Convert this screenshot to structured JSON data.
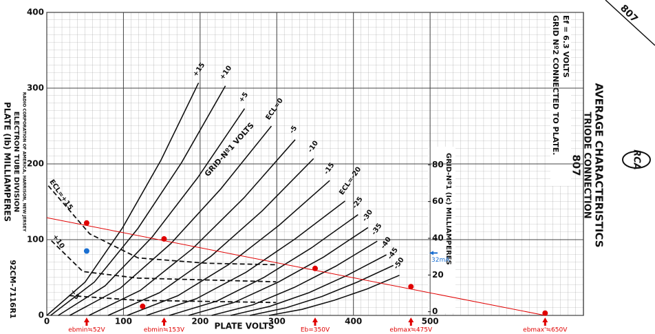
{
  "chart_data": {
    "type": "line",
    "x_label": "PLATE VOLTS",
    "y_label": "PLATE (Ib) MILLIAMPERES",
    "y2_label": "GRID-Nº1 (Ic) MILLIAMPERES",
    "title": "AVERAGE CHARACTERISTICS",
    "subtitle": "TRIODE CONNECTION",
    "tube": "807",
    "corner_label": "807",
    "logo": "RCA",
    "conditions": [
      "Ef = 6.3 VOLTS",
      "GRID Nº2 CONNECTED TO PLATE."
    ],
    "maker": [
      "ELECTRON TUBE DIVISION",
      "RADIO CORPORATION OF AMERICA, HARRISON, NEW JERSEY"
    ],
    "drawing_number": "92CM-7116R1",
    "curves_label": "GRID-Nº1 VOLTS",
    "xlim": [
      0,
      700
    ],
    "xticks": [
      0,
      100,
      200,
      300,
      400,
      500
    ],
    "ylim": [
      0,
      400
    ],
    "yticks": [
      0,
      100,
      200,
      300,
      400
    ],
    "y2lim": [
      -2,
      163
    ],
    "y2ticks": [
      0,
      20,
      40,
      60,
      80
    ],
    "grid": true,
    "series": [
      {
        "name": "+15",
        "color": "#111",
        "x": [
          0,
          50,
          99,
          149,
          198
        ],
        "values": [
          0,
          44,
          116,
          205,
          307
        ]
      },
      {
        "name": "+10",
        "color": "#111",
        "x": [
          5,
          62,
          119,
          176,
          233
        ],
        "values": [
          0,
          44,
          115,
          202,
          303
        ]
      },
      {
        "name": "+5",
        "color": "#111",
        "x": [
          15,
          76,
          137,
          197,
          258
        ],
        "values": [
          0,
          39,
          103,
          182,
          273
        ]
      },
      {
        "name": "ECL=0",
        "color": "#111",
        "x": [
          30,
          96,
          162,
          227,
          293
        ],
        "values": [
          0,
          36,
          95,
          167,
          250
        ]
      },
      {
        "name": "-5",
        "color": "#111",
        "x": [
          55,
          122,
          190,
          257,
          324
        ],
        "values": [
          0,
          33,
          88,
          155,
          232
        ]
      },
      {
        "name": "-10",
        "color": "#111",
        "x": [
          80,
          147,
          214,
          281,
          348
        ],
        "values": [
          0,
          30,
          78,
          138,
          207
        ]
      },
      {
        "name": "-15",
        "color": "#111",
        "x": [
          105,
          171,
          237,
          303,
          369
        ],
        "values": [
          0,
          26,
          67,
          119,
          178
        ]
      },
      {
        "name": "ECL=-20",
        "color": "#111",
        "x": [
          130,
          195,
          260,
          324,
          389
        ],
        "values": [
          0,
          22,
          57,
          101,
          151
        ]
      },
      {
        "name": "-25",
        "color": "#111",
        "x": [
          160,
          222,
          283,
          345,
          406
        ],
        "values": [
          0,
          19,
          50,
          89,
          133
        ]
      },
      {
        "name": "-30",
        "color": "#111",
        "x": [
          185,
          244,
          302,
          361,
          419
        ],
        "values": [
          0,
          17,
          44,
          77,
          116
        ]
      },
      {
        "name": "-35",
        "color": "#111",
        "x": [
          215,
          269,
          323,
          377,
          431
        ],
        "values": [
          0,
          14,
          37,
          65,
          98
        ]
      },
      {
        "name": "-40",
        "color": "#111",
        "x": [
          240,
          291,
          342,
          392,
          443
        ],
        "values": [
          0,
          12,
          30,
          53,
          80
        ]
      },
      {
        "name": "-45",
        "color": "#111",
        "x": [
          265,
          312,
          359,
          405,
          452
        ],
        "values": [
          0,
          10,
          25,
          44,
          66
        ]
      },
      {
        "name": "-50",
        "color": "#111",
        "x": [
          290,
          333,
          375,
          418,
          460
        ],
        "values": [
          0,
          8,
          20,
          35,
          53
        ]
      },
      {
        "name": "ECL=+15",
        "color": "#111",
        "dashed": true,
        "axis": "y2",
        "x": [
          2,
          56,
          119,
          209,
          299
        ],
        "values": [
          68.6,
          42.4,
          29.3,
          26.4,
          25.6
        ]
      },
      {
        "name": "+10",
        "color": "#111",
        "dashed": true,
        "axis": "y2",
        "x": [
          6,
          47,
          119,
          299
        ],
        "values": [
          38.7,
          21.9,
          18.3,
          16.3
        ]
      },
      {
        "name": "+5",
        "color": "#111",
        "dashed": true,
        "axis": "y2",
        "x": [
          29,
          119,
          299
        ],
        "values": [
          8.8,
          6.2,
          5.0
        ]
      }
    ],
    "load_line": {
      "color": "#e00000",
      "x": [
        0,
        650
      ],
      "values": [
        129,
        0
      ]
    },
    "points": {
      "color": "#e00000",
      "x": [
        52,
        153,
        350,
        475,
        650,
        125
      ],
      "values": [
        122,
        101,
        62,
        38,
        3,
        12
      ]
    },
    "blue_point": {
      "color": "#1a6fd1",
      "x": [
        52
      ],
      "values": [
        85
      ]
    },
    "annotations": [
      {
        "text": "ebmin≒52V",
        "x": 52
      },
      {
        "text": "ebmin≒153V",
        "x": 153
      },
      {
        "text": "Eb=350V",
        "x": 350
      },
      {
        "text": "ebmax≒475V",
        "x": 475
      },
      {
        "text": "ebmax'≒650V",
        "x": 650
      }
    ],
    "grid_note": {
      "text": "32mA",
      "y2": 32,
      "color": "#1a6fd1"
    }
  }
}
